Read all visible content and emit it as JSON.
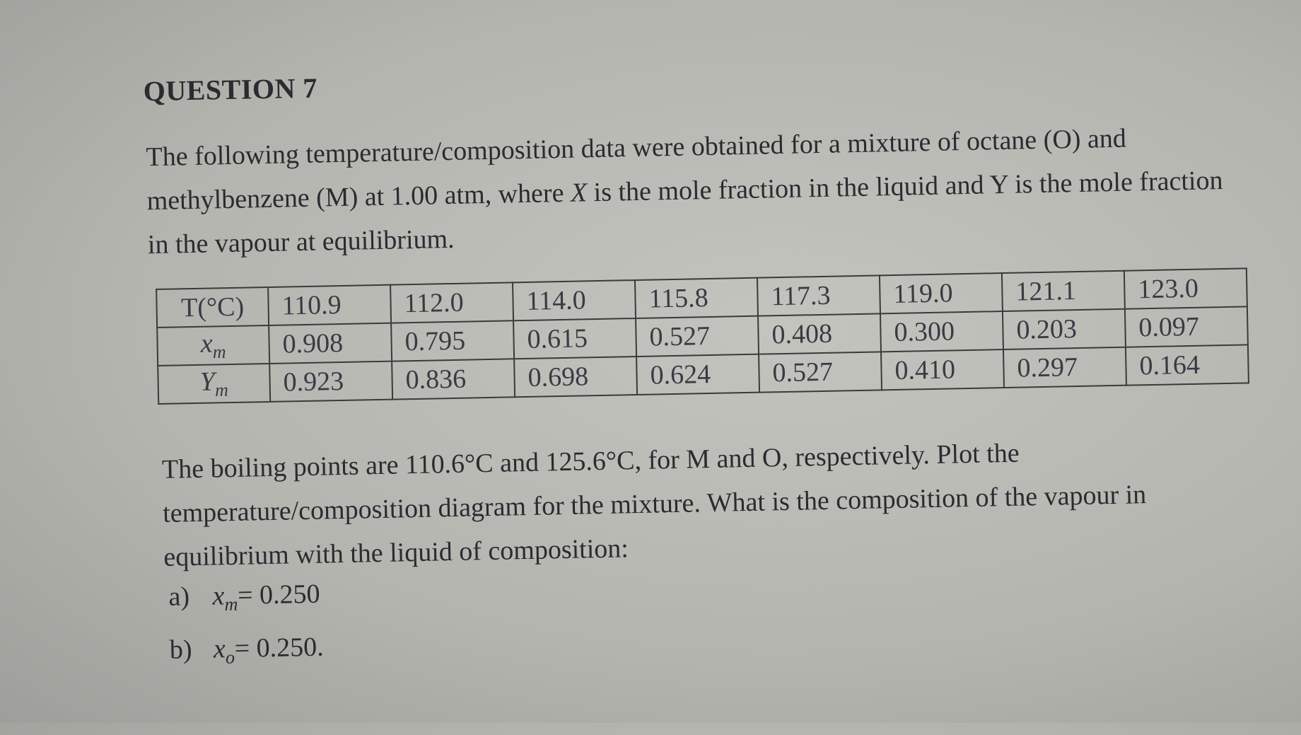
{
  "title": "QUESTION 7",
  "intro": {
    "before": "The following temperature/composition data were obtained for a mixture of octane (O) and methylbenzene (M) at 1.00 atm, where ",
    "italic": "X",
    "after": " is the mole fraction in the liquid and Y is the mole fraction in the vapour at equilibrium."
  },
  "table": {
    "rows": [
      {
        "label": {
          "symbol": "T(°C)",
          "subscript": null
        },
        "cells": [
          "110.9",
          "112.0",
          "114.0",
          "115.8",
          "117.3",
          "119.0",
          "121.1",
          "123.0"
        ]
      },
      {
        "label": {
          "symbol": "x",
          "subscript": "m"
        },
        "cells": [
          "0.908",
          "0.795",
          "0.615",
          "0.527",
          "0.408",
          "0.300",
          "0.203",
          "0.097"
        ]
      },
      {
        "label": {
          "symbol": "Y",
          "subscript": "m"
        },
        "cells": [
          "0.923",
          "0.836",
          "0.698",
          "0.624",
          "0.527",
          "0.410",
          "0.297",
          "0.164"
        ]
      }
    ]
  },
  "question": "The boiling points are 110.6°C and 125.6°C, for M and O, respectively. Plot the temperature/composition diagram for the mixture. What is the composition of the vapour in equilibrium with the liquid of composition:",
  "parts": [
    {
      "label": "a)",
      "symbol": "x",
      "subscript": "m",
      "value": "= 0.250"
    },
    {
      "label": "b)",
      "symbol": "x",
      "subscript": "o",
      "value": "= 0.250."
    }
  ]
}
